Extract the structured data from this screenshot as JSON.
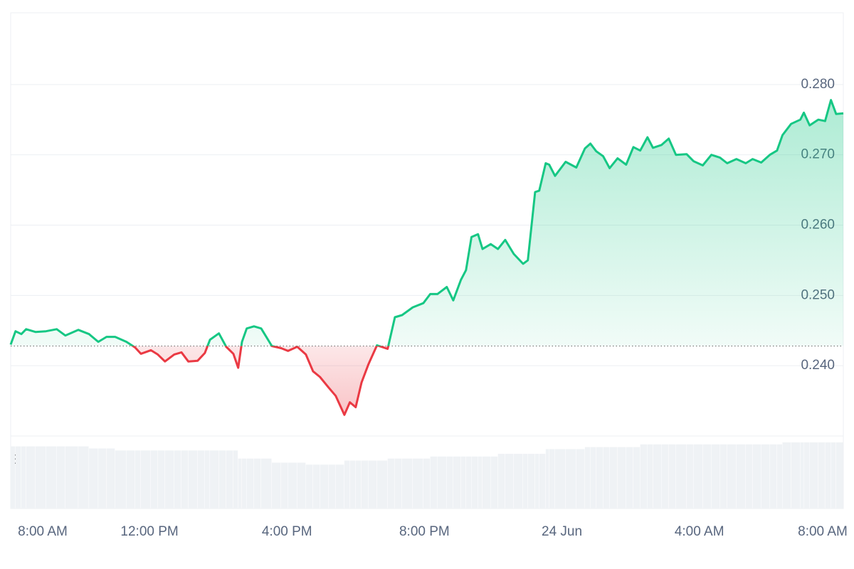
{
  "chart_data": {
    "type": "line",
    "x": [
      -0.04,
      0.1,
      0.27,
      0.41,
      0.68,
      0.99,
      1.3,
      1.55,
      1.93,
      2.24,
      2.51,
      2.75,
      3.0,
      3.33,
      3.58,
      3.75,
      4.04,
      4.24,
      4.45,
      4.72,
      4.93,
      5.13,
      5.4,
      5.61,
      5.76,
      6.02,
      6.23,
      6.44,
      6.58,
      6.69,
      6.83,
      7.04,
      7.25,
      7.56,
      7.83,
      8.03,
      8.3,
      8.55,
      8.76,
      8.96,
      9.21,
      9.42,
      9.67,
      9.83,
      10.0,
      10.17,
      10.37,
      10.62,
      10.93,
      11.14,
      11.35,
      11.66,
      11.97,
      12.17,
      12.38,
      12.65,
      12.84,
      13.06,
      13.21,
      13.37,
      13.56,
      13.69,
      13.93,
      14.14,
      14.35,
      14.6,
      14.87,
      15.01,
      15.22,
      15.34,
      15.53,
      15.63,
      15.8,
      16.11,
      16.42,
      16.67,
      16.83,
      17.0,
      17.2,
      17.39,
      17.62,
      17.87,
      18.08,
      18.28,
      18.49,
      18.65,
      18.9,
      19.11,
      19.32,
      19.63,
      19.83,
      20.1,
      20.35,
      20.6,
      20.81,
      21.08,
      21.35,
      21.55,
      21.8,
      22.05,
      22.26,
      22.42,
      22.67,
      22.94,
      23.04,
      23.21,
      23.46,
      23.66,
      23.83,
      23.98,
      24.19
    ],
    "series": [
      {
        "name": "price",
        "color": "#16c784",
        "negative_color": "#ea3943",
        "values": [
          0.243,
          0.2449,
          0.2445,
          0.2452,
          0.2448,
          0.2449,
          0.2452,
          0.2443,
          0.2451,
          0.2445,
          0.2434,
          0.2441,
          0.2441,
          0.2434,
          0.2426,
          0.2417,
          0.2422,
          0.2416,
          0.2406,
          0.2416,
          0.2419,
          0.2406,
          0.2407,
          0.2418,
          0.2437,
          0.2446,
          0.2427,
          0.2417,
          0.2397,
          0.2434,
          0.2453,
          0.2456,
          0.2453,
          0.2428,
          0.2425,
          0.2421,
          0.2427,
          0.2416,
          0.2392,
          0.2384,
          0.2369,
          0.2357,
          0.233,
          0.2348,
          0.2341,
          0.2376,
          0.2402,
          0.2429,
          0.2424,
          0.2469,
          0.2472,
          0.2483,
          0.2489,
          0.2502,
          0.2502,
          0.2512,
          0.2493,
          0.2522,
          0.2536,
          0.2583,
          0.2587,
          0.2566,
          0.2573,
          0.2566,
          0.2579,
          0.2559,
          0.2545,
          0.255,
          0.2647,
          0.2649,
          0.2688,
          0.2686,
          0.267,
          0.269,
          0.2682,
          0.2709,
          0.2716,
          0.2705,
          0.2698,
          0.2681,
          0.2695,
          0.2686,
          0.2711,
          0.2706,
          0.2725,
          0.271,
          0.2714,
          0.2723,
          0.27,
          0.2701,
          0.2691,
          0.2685,
          0.27,
          0.2696,
          0.2688,
          0.2694,
          0.2688,
          0.2694,
          0.2689,
          0.27,
          0.2706,
          0.2728,
          0.2744,
          0.275,
          0.276,
          0.2742,
          0.275,
          0.2748,
          0.2778,
          0.2758,
          0.2759
        ]
      },
      {
        "name": "volume",
        "color": "#eff2f5",
        "values": [
          92,
          92,
          92,
          92,
          92,
          92,
          92,
          92,
          92,
          89,
          89,
          89,
          86,
          86,
          86,
          86,
          86,
          86,
          86,
          86,
          86,
          86,
          86,
          86,
          86,
          86,
          86,
          86,
          74,
          74,
          74,
          74,
          74,
          68,
          68,
          68,
          68,
          65,
          65,
          65,
          65,
          65,
          71,
          71,
          71,
          71,
          71,
          71,
          74,
          74,
          74,
          74,
          74,
          77,
          77,
          77,
          77,
          77,
          77,
          77,
          77,
          77,
          77,
          81,
          81,
          81,
          81,
          81,
          81,
          81,
          88,
          88,
          88,
          88,
          88,
          91,
          91,
          91,
          91,
          91,
          91,
          91,
          91,
          95,
          95,
          95,
          95,
          95,
          95,
          95,
          95,
          95,
          95,
          95,
          95,
          95,
          95,
          95,
          95,
          95,
          95,
          98,
          98,
          98,
          98,
          98,
          98,
          98,
          98,
          98,
          98
        ]
      }
    ],
    "baseline": 0.2428,
    "xlim": [
      -0.04,
      24.19
    ],
    "xticks": [
      {
        "value": 0,
        "label": "8:00 AM"
      },
      {
        "value": 4,
        "label": "12:00 PM"
      },
      {
        "value": 8,
        "label": "4:00 PM"
      },
      {
        "value": 12,
        "label": "8:00 PM"
      },
      {
        "value": 16,
        "label": "24 Jun"
      },
      {
        "value": 20,
        "label": "4:00 AM"
      },
      {
        "value": 24,
        "label": "8:00 AM"
      }
    ],
    "ylim": [
      0.23,
      0.29
    ],
    "yticks": [
      {
        "value": 0.24,
        "label": "0.240"
      },
      {
        "value": 0.25,
        "label": "0.250"
      },
      {
        "value": 0.26,
        "label": "0.260"
      },
      {
        "value": 0.27,
        "label": "0.270"
      },
      {
        "value": 0.28,
        "label": "0.280"
      }
    ],
    "volume_lim": [
      0,
      100
    ],
    "volume_label": "3",
    "grid": true
  }
}
